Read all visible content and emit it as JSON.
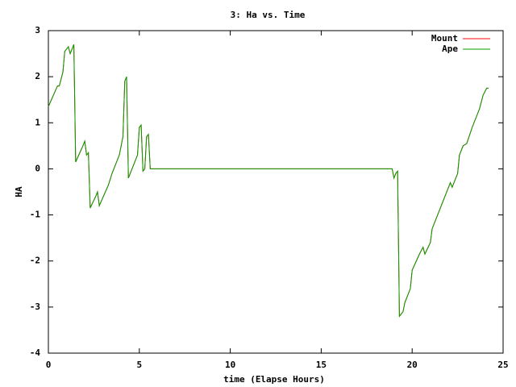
{
  "chart_data": {
    "type": "line",
    "title": "3: Ha vs. Time",
    "x_label": "time (Elapse Hours)",
    "y_label": "HA",
    "x": [
      0,
      0.5,
      0.6,
      0.8,
      0.9,
      1.1,
      1.2,
      1.4,
      1.5,
      1.9,
      2.0,
      2.1,
      2.2,
      2.3,
      2.6,
      2.7,
      2.8,
      3.3,
      3.5,
      3.9,
      4.1,
      4.2,
      4.3,
      4.4,
      4.9,
      5.0,
      5.1,
      5.2,
      5.3,
      5.4,
      5.5,
      5.6,
      18.9,
      19.0,
      19.1,
      19.2,
      19.3,
      19.5,
      19.6,
      19.9,
      20.0,
      20.4,
      20.6,
      20.7,
      21.0,
      21.1,
      21.8,
      22.1,
      22.2,
      22.5,
      22.6,
      22.8,
      23.0,
      23.3,
      23.7,
      23.9,
      24.1,
      24.2
    ],
    "series": [
      {
        "name": "Mount",
        "color": "#ff0000",
        "values": [
          1.35,
          1.8,
          1.8,
          2.1,
          2.55,
          2.65,
          2.5,
          2.7,
          0.15,
          0.5,
          0.6,
          0.3,
          0.35,
          -0.85,
          -0.6,
          -0.5,
          -0.8,
          -0.35,
          -0.1,
          0.3,
          0.7,
          1.9,
          2.0,
          -0.2,
          0.3,
          0.9,
          0.95,
          -0.05,
          0.0,
          0.7,
          0.75,
          0.0,
          0.0,
          -0.2,
          -0.1,
          -0.05,
          -3.2,
          -3.1,
          -2.9,
          -2.6,
          -2.2,
          -1.85,
          -1.7,
          -1.85,
          -1.6,
          -1.3,
          -0.6,
          -0.3,
          -0.4,
          -0.1,
          0.3,
          0.5,
          0.55,
          0.9,
          1.3,
          1.6,
          1.75,
          1.75
        ]
      },
      {
        "name": "Ape",
        "color": "#00a000",
        "values": [
          1.35,
          1.8,
          1.8,
          2.1,
          2.55,
          2.65,
          2.5,
          2.7,
          0.15,
          0.5,
          0.6,
          0.3,
          0.35,
          -0.85,
          -0.6,
          -0.5,
          -0.8,
          -0.35,
          -0.1,
          0.3,
          0.7,
          1.9,
          2.0,
          -0.2,
          0.3,
          0.9,
          0.95,
          -0.05,
          0.0,
          0.7,
          0.75,
          0.0,
          0.0,
          -0.2,
          -0.1,
          -0.05,
          -3.2,
          -3.1,
          -2.9,
          -2.6,
          -2.2,
          -1.85,
          -1.7,
          -1.85,
          -1.6,
          -1.3,
          -0.6,
          -0.3,
          -0.4,
          -0.1,
          0.3,
          0.5,
          0.55,
          0.9,
          1.3,
          1.6,
          1.75,
          1.75
        ]
      }
    ],
    "xlim": [
      0,
      25
    ],
    "xticks": [
      0,
      5,
      10,
      15,
      20,
      25
    ],
    "ylim": [
      -4,
      3
    ],
    "yticks": [
      -4,
      -3,
      -2,
      -1,
      0,
      1,
      2,
      3
    ],
    "legend": "top-right",
    "grid": false
  }
}
